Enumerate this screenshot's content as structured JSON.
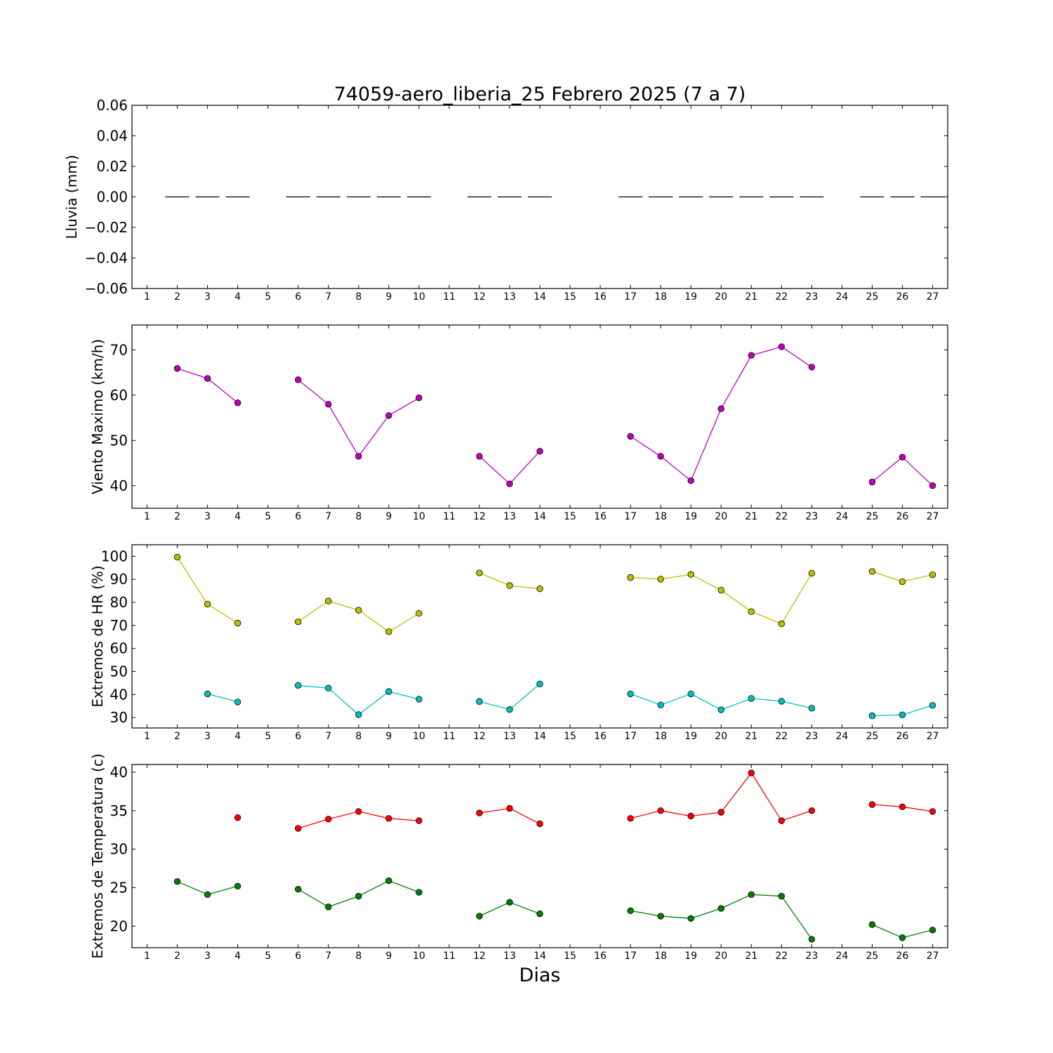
{
  "chart_data": {
    "title": "74059-aero_liberia_25 Febrero 2025  (7 a 7)",
    "xlabel": "Dias",
    "x_ticks": [
      1,
      2,
      3,
      4,
      5,
      6,
      7,
      8,
      9,
      10,
      11,
      12,
      13,
      14,
      15,
      16,
      17,
      18,
      19,
      20,
      21,
      22,
      23,
      24,
      25,
      26,
      27
    ],
    "xlim": [
      0.5,
      27.5
    ],
    "panels": [
      {
        "type": "line",
        "ylabel": "Lluvia (mm)",
        "ylim": [
          -0.06,
          0.06
        ],
        "yticks": [
          0.06,
          0.04,
          0.02,
          0.0,
          -0.02,
          -0.04,
          -0.06
        ],
        "ytick_labels": [
          "0.06",
          "0.04",
          "0.02",
          "0.00",
          "−0.02",
          "−0.04",
          "−0.06"
        ],
        "series": [
          {
            "marker": "hline",
            "color": "#000000",
            "x": [
              2,
              3,
              4,
              6,
              7,
              8,
              9,
              10,
              12,
              13,
              14,
              17,
              18,
              19,
              20,
              21,
              22,
              23,
              25,
              26,
              27
            ],
            "y": [
              0,
              0,
              0,
              0,
              0,
              0,
              0,
              0,
              0,
              0,
              0,
              0,
              0,
              0,
              0,
              0,
              0,
              0,
              0,
              0,
              0
            ]
          }
        ]
      },
      {
        "type": "line",
        "ylabel": "Viento Maximo (km/h)",
        "ylim": [
          35,
          75.5
        ],
        "yticks": [
          40,
          50,
          60,
          70
        ],
        "ytick_labels": [
          "40",
          "50",
          "60",
          "70"
        ],
        "series": [
          {
            "marker": "o",
            "color": "#bf00bf",
            "x": [
              2,
              3,
              4,
              5,
              6,
              7,
              8,
              9,
              10,
              11,
              12,
              13,
              14,
              15,
              16,
              17,
              18,
              19,
              20,
              21,
              22,
              23,
              24,
              25,
              26,
              27
            ],
            "y": [
              65.9,
              63.7,
              58.3,
              null,
              63.4,
              58.0,
              46.5,
              55.5,
              59.4,
              null,
              46.5,
              40.4,
              47.6,
              null,
              null,
              50.9,
              46.5,
              41.1,
              57.0,
              68.8,
              70.7,
              66.2,
              null,
              40.8,
              46.3,
              40.0
            ]
          }
        ]
      },
      {
        "type": "line",
        "ylabel": "Extremos de HR (%)",
        "ylim": [
          25.5,
          105
        ],
        "yticks": [
          30,
          40,
          50,
          60,
          70,
          80,
          90,
          100
        ],
        "ytick_labels": [
          "30",
          "40",
          "50",
          "60",
          "70",
          "80",
          "90",
          "100"
        ],
        "series": [
          {
            "marker": "o",
            "color": "#bfbf00",
            "x": [
              2,
              3,
              4,
              5,
              6,
              7,
              8,
              9,
              10,
              11,
              12,
              13,
              14,
              15,
              16,
              17,
              18,
              19,
              20,
              21,
              22,
              23,
              24,
              25,
              26,
              27
            ],
            "y": [
              99.6,
              79.2,
              71.0,
              null,
              71.6,
              80.6,
              76.6,
              67.3,
              75.2,
              null,
              92.8,
              87.3,
              85.9,
              null,
              null,
              90.8,
              90.1,
              92.1,
              85.3,
              76.0,
              70.7,
              92.6,
              null,
              93.4,
              89.0,
              92.0
            ]
          },
          {
            "marker": "o",
            "color": "#00bfbf",
            "x": [
              2,
              3,
              4,
              5,
              6,
              7,
              8,
              9,
              10,
              11,
              12,
              13,
              14,
              15,
              16,
              17,
              18,
              19,
              20,
              21,
              22,
              23,
              24,
              25,
              26,
              27
            ],
            "y": [
              null,
              40.3,
              36.8,
              null,
              44.0,
              42.8,
              31.3,
              41.3,
              38.0,
              null,
              37.0,
              33.5,
              44.6,
              null,
              null,
              40.3,
              35.5,
              40.3,
              33.4,
              38.3,
              37.1,
              34.1,
              null,
              30.8,
              31.2,
              35.3
            ]
          }
        ]
      },
      {
        "type": "line",
        "ylabel": "Extremos de Temperatura (c)",
        "ylim": [
          17.2,
          41
        ],
        "yticks": [
          20,
          25,
          30,
          35,
          40
        ],
        "ytick_labels": [
          "20",
          "25",
          "30",
          "35",
          "40"
        ],
        "series": [
          {
            "marker": "o",
            "color": "#ff0000",
            "x": [
              2,
              3,
              4,
              5,
              6,
              7,
              8,
              9,
              10,
              11,
              12,
              13,
              14,
              15,
              16,
              17,
              18,
              19,
              20,
              21,
              22,
              23,
              24,
              25,
              26,
              27
            ],
            "y": [
              null,
              null,
              34.1,
              null,
              32.7,
              33.9,
              34.9,
              34.0,
              33.7,
              null,
              34.7,
              35.3,
              33.3,
              null,
              null,
              34.0,
              35.0,
              34.3,
              34.8,
              39.9,
              33.7,
              35.0,
              null,
              35.8,
              35.5,
              34.9
            ]
          },
          {
            "marker": "o",
            "color": "#007f00",
            "x": [
              2,
              3,
              4,
              5,
              6,
              7,
              8,
              9,
              10,
              11,
              12,
              13,
              14,
              15,
              16,
              17,
              18,
              19,
              20,
              21,
              22,
              23,
              24,
              25,
              26,
              27
            ],
            "y": [
              25.8,
              24.1,
              25.2,
              null,
              24.8,
              22.5,
              23.9,
              25.9,
              24.4,
              null,
              21.3,
              23.1,
              21.6,
              null,
              null,
              22.0,
              21.3,
              21.0,
              22.3,
              24.1,
              23.9,
              18.3,
              null,
              20.2,
              18.5,
              19.5
            ]
          }
        ]
      }
    ]
  }
}
